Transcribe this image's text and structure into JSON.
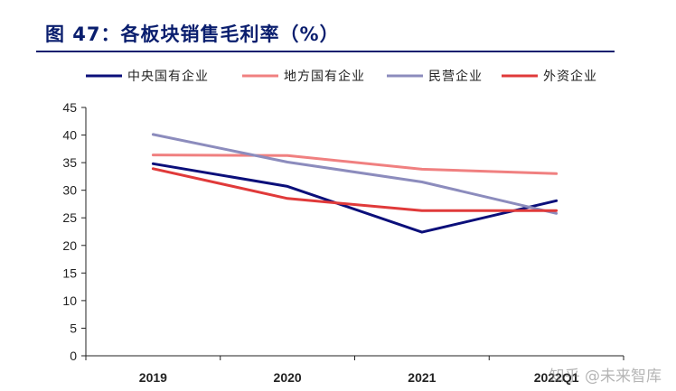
{
  "figure_title": "图 47：各板块销售毛利率（%）",
  "watermark": "知乎 @未来智库",
  "chart_data": {
    "type": "line",
    "title": "",
    "xlabel": "",
    "ylabel": "",
    "categories": [
      "2019",
      "2020",
      "2021",
      "2022Q1"
    ],
    "ylim": [
      0,
      45
    ],
    "yticks": [
      0,
      5,
      10,
      15,
      20,
      25,
      30,
      35,
      40,
      45
    ],
    "grid": false,
    "legend_position": "top",
    "series": [
      {
        "name": "中央国有企业",
        "color": "#0b0f7a",
        "values": [
          34.8,
          30.7,
          22.4,
          28.1
        ]
      },
      {
        "name": "地方国有企业",
        "color": "#f08080",
        "values": [
          36.4,
          36.3,
          33.8,
          33.0
        ]
      },
      {
        "name": "民营企业",
        "color": "#8c8cbd",
        "values": [
          40.1,
          35.1,
          31.5,
          25.8
        ]
      },
      {
        "name": "外资企业",
        "color": "#e03a3a",
        "values": [
          33.9,
          28.5,
          26.3,
          26.3
        ]
      }
    ]
  }
}
